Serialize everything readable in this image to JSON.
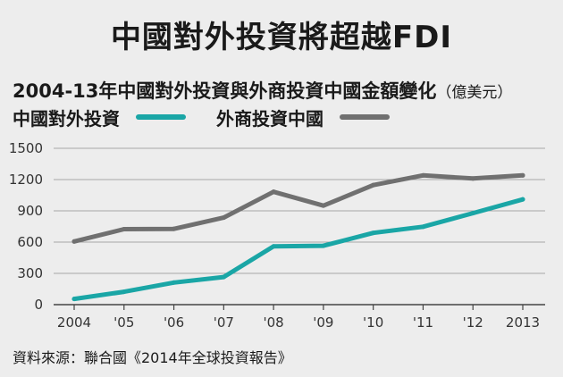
{
  "title": "中國對外投資將超越FDI",
  "subtitle": "2004-13年中國對外投資與外商投資中國金額變化",
  "unit": "（億美元）",
  "source": "資料來源：聯合國《2014年全球投資報告》",
  "colors": {
    "series1": "#1aa6a6",
    "series2": "#707070",
    "grid": "#a8a8a8",
    "axis": "#444444"
  },
  "chart_data": {
    "type": "line",
    "title": "中國對外投資將超越FDI",
    "subtitle": "2004-13年中國對外投資與外商投資中國金額變化",
    "xlabel": "",
    "ylabel": "",
    "categories": [
      "2004",
      "'05",
      "'06",
      "'07",
      "'08",
      "'09",
      "'10",
      "'11",
      "'12",
      "2013"
    ],
    "ylim": [
      0,
      1500
    ],
    "yticks": [
      "0",
      "300",
      "600",
      "900",
      "1200",
      "1500"
    ],
    "grid": true,
    "legend": "top-left",
    "series": [
      {
        "name": "中國對外投資",
        "values": [
          55,
          123,
          212,
          265,
          559,
          565,
          688,
          747,
          878,
          1010
        ]
      },
      {
        "name": "外商投資中國",
        "values": [
          606,
          724,
          727,
          835,
          1083,
          950,
          1147,
          1240,
          1210,
          1240
        ]
      }
    ]
  }
}
